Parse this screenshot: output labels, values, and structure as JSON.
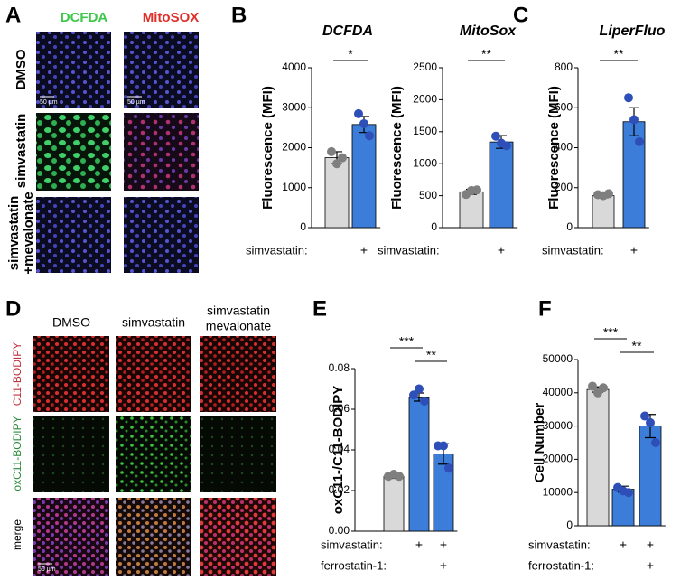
{
  "panel_labels": [
    "A",
    "B",
    "C",
    "D",
    "E",
    "F"
  ],
  "panel_a": {
    "stains": [
      "DCFDA",
      "MitoSOX"
    ],
    "conditions": [
      [
        "DMSO"
      ],
      [
        "simvastatin"
      ],
      [
        "simvastatin",
        "+mevalonate"
      ]
    ],
    "scale_bar": "50 µm"
  },
  "panel_d": {
    "conditions": [
      [
        "DMSO"
      ],
      [
        "simvastatin"
      ],
      [
        "simvastatin",
        "mevalonate"
      ]
    ],
    "channels": [
      "C11-BODIPY",
      "oxC11-BODIPY",
      "merge"
    ],
    "scale_bar": "50 µm"
  },
  "chart_data": [
    {
      "type": "bar",
      "title": "DCFDA",
      "ylabel": "Fluorescence (MFI)",
      "ylim": [
        0,
        4000
      ],
      "yticks": [
        0,
        1000,
        2000,
        3000,
        4000
      ],
      "values": [
        1750,
        2580
      ],
      "errors": [
        150,
        200
      ],
      "points": [
        [
          1900,
          1600,
          1750
        ],
        [
          2850,
          2600,
          2300
        ]
      ],
      "colors": [
        "#d9d9d9",
        "#3b7dd8"
      ],
      "point_colors": [
        "#7f7f7f",
        "#2e4fb8"
      ],
      "treatments": [
        {
          "label": "simvastatin:",
          "values": [
            null,
            "+"
          ]
        }
      ],
      "significance": [
        "*"
      ]
    },
    {
      "type": "bar",
      "title": "MitoSox",
      "ylabel": "Fluorescence (MFI)",
      "ylim": [
        0,
        2500
      ],
      "yticks": [
        0,
        500,
        1000,
        1500,
        2000,
        2500
      ],
      "values": [
        560,
        1340
      ],
      "errors": [
        40,
        100
      ],
      "points": [
        [
          520,
          580,
          590
        ],
        [
          1430,
          1320,
          1280
        ]
      ],
      "colors": [
        "#d9d9d9",
        "#3b7dd8"
      ],
      "point_colors": [
        "#7f7f7f",
        "#2e4fb8"
      ],
      "treatments": [
        {
          "label": "simvastatin:",
          "values": [
            null,
            "+"
          ]
        }
      ],
      "significance": [
        "**"
      ]
    },
    {
      "type": "bar",
      "title": "LiperFluo",
      "ylabel": "Fluorescence (MFI)",
      "ylim": [
        0,
        800
      ],
      "yticks": [
        0,
        200,
        400,
        600,
        800
      ],
      "values": [
        160,
        530
      ],
      "errors": [
        10,
        70
      ],
      "points": [
        [
          165,
          160,
          170
        ],
        [
          650,
          540,
          430
        ]
      ],
      "colors": [
        "#d9d9d9",
        "#3b7dd8"
      ],
      "point_colors": [
        "#7f7f7f",
        "#2e4fb8"
      ],
      "treatments": [
        {
          "label": "simvastatin:",
          "values": [
            null,
            "+"
          ]
        }
      ],
      "significance": [
        "**"
      ]
    },
    {
      "type": "bar",
      "ylabel": "oxC11-/C11-BODIPY",
      "ylim": [
        0,
        0.08
      ],
      "yticks": [
        {
          "value": 0,
          "label": "0.00"
        },
        {
          "value": 0.02,
          "label": "0.02"
        },
        {
          "value": 0.04,
          "label": "0.04"
        },
        {
          "value": 0.06,
          "label": "0.06"
        },
        {
          "value": 0.08,
          "label": "0.08"
        }
      ],
      "values": [
        0.027,
        0.066,
        0.038
      ],
      "errors": [
        0.001,
        0.002,
        0.005
      ],
      "points": [
        [
          0.027,
          0.028,
          0.027
        ],
        [
          0.067,
          0.07,
          0.064
        ],
        [
          0.042,
          0.042,
          0.031
        ]
      ],
      "colors": [
        "#d9d9d9",
        "#3b7dd8",
        "#3b7dd8"
      ],
      "point_colors": [
        "#7f7f7f",
        "#2e4fb8",
        "#2e4fb8"
      ],
      "treatments": [
        {
          "label": "simvastatin:",
          "values": [
            null,
            "+",
            "+"
          ]
        },
        {
          "label": "ferrostatin-1:",
          "values": [
            null,
            null,
            "+"
          ]
        }
      ],
      "significance": [
        "***",
        "**"
      ]
    },
    {
      "type": "bar",
      "ylabel": "Cell Number",
      "ylim": [
        0,
        50000
      ],
      "yticks": [
        0,
        10000,
        20000,
        30000,
        40000,
        50000
      ],
      "values": [
        41000,
        11000,
        30000
      ],
      "errors": [
        800,
        900,
        3500
      ],
      "points": [
        [
          42000,
          40000,
          41500
        ],
        [
          11500,
          10500,
          10000
        ],
        [
          33000,
          31000,
          25000
        ]
      ],
      "colors": [
        "#d9d9d9",
        "#3b7dd8",
        "#3b7dd8"
      ],
      "point_colors": [
        "#7f7f7f",
        "#2e4fb8",
        "#2e4fb8"
      ],
      "treatments": [
        {
          "label": "simvastatin:",
          "values": [
            null,
            "+",
            "+"
          ]
        },
        {
          "label": "ferrostatin-1:",
          "values": [
            null,
            null,
            "+"
          ]
        }
      ],
      "significance": [
        "***",
        "**"
      ]
    }
  ]
}
